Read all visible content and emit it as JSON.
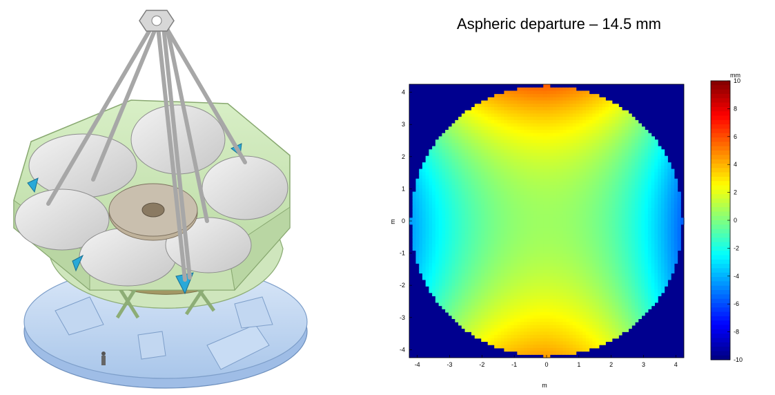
{
  "figure": {
    "illustration_alt": ""
  },
  "chart_data": {
    "type": "heatmap",
    "title": "Aspheric departure – 14.5 mm",
    "xlabel": "m",
    "ylabel": "m",
    "xlim": [
      -4.25,
      4.25
    ],
    "ylim": [
      -4.25,
      4.25
    ],
    "x_ticks": [
      -4,
      -3,
      -2,
      -1,
      0,
      1,
      2,
      3,
      4
    ],
    "y_ticks": [
      4,
      3,
      2,
      1,
      0,
      -1,
      -2,
      -3,
      -4
    ],
    "aperture_radius_m": 4.2,
    "colorbar": {
      "label": "mm",
      "range": [
        -10,
        10
      ],
      "ticks": [
        10,
        8,
        6,
        4,
        2,
        0,
        -2,
        -4,
        -6,
        -8,
        -10
      ],
      "colormap": "jet"
    },
    "outside_value": -10,
    "surface_samples": [
      {
        "x": 0,
        "y": 4.1,
        "value": 5.5
      },
      {
        "x": 0,
        "y": -4.1,
        "value": 5.0
      },
      {
        "x": -4.2,
        "y": 0,
        "value": -4.0
      },
      {
        "x": 4.2,
        "y": 0,
        "value": -6.0
      },
      {
        "x": 0,
        "y": 0,
        "value": 0.5
      }
    ]
  },
  "colors": {
    "background": "#ffffff",
    "outside_disc": "#00008f"
  }
}
